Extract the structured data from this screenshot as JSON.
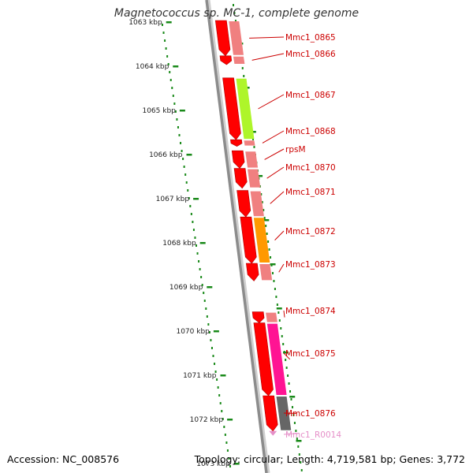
{
  "title": "Magnetococcus sp. MC-1, complete genome",
  "accession": "Accession: NC_008576",
  "summary": "Topology: circular; Length: 4,719,581 bp; Genes: 3,772",
  "colors": {
    "backbone": "#8c8c8c",
    "tick": "#1a8a1a",
    "gene_label": "#cc0000",
    "rna_label": "#e58fc8",
    "cds_forward": "#ff0000",
    "cds_reverse": "#f08080",
    "cog_green": "#aef52a",
    "cog_orange": "#ff9900",
    "cog_pink": "#ff1493",
    "cog_gray": "#666666"
  },
  "scale": {
    "unit": "kbp",
    "labels": [
      "1063 kbp",
      "1064 kbp",
      "1065 kbp",
      "1066 kbp",
      "1067 kbp",
      "1068 kbp",
      "1069 kbp",
      "1070 kbp",
      "1071 kbp",
      "1072 kbp",
      "1073 kbp"
    ]
  },
  "genes": [
    {
      "name": "Mmc1_0865",
      "start": 1063.0,
      "end": 1063.8,
      "strand": "forward",
      "function": "cds_forward"
    },
    {
      "name": "Mmc1_0866",
      "start": 1063.8,
      "end": 1064.0,
      "strand": "forward",
      "function": "cds_forward"
    },
    {
      "name": "Mmc1_0867",
      "start": 1064.3,
      "end": 1065.7,
      "strand": "forward",
      "function": "cog_green"
    },
    {
      "name": "Mmc1_0868",
      "start": 1065.7,
      "end": 1065.85,
      "strand": "forward",
      "function": "cds_forward"
    },
    {
      "name": "rpsM",
      "start": 1065.95,
      "end": 1066.35,
      "strand": "forward",
      "function": "cds_forward"
    },
    {
      "name": "Mmc1_0870",
      "start": 1066.35,
      "end": 1066.8,
      "strand": "forward",
      "function": "cds_forward"
    },
    {
      "name": "Mmc1_0871",
      "start": 1066.85,
      "end": 1067.45,
      "strand": "forward",
      "function": "cds_forward"
    },
    {
      "name": "Mmc1_0872",
      "start": 1067.45,
      "end": 1068.5,
      "strand": "forward",
      "function": "cog_orange"
    },
    {
      "name": "Mmc1_0873",
      "start": 1068.5,
      "end": 1068.9,
      "strand": "forward",
      "function": "cds_forward"
    },
    {
      "name": "Mmc1_0874",
      "start": 1069.6,
      "end": 1069.85,
      "strand": "forward",
      "function": "cds_forward"
    },
    {
      "name": "Mmc1_0875",
      "start": 1069.85,
      "end": 1071.5,
      "strand": "forward",
      "function": "cog_pink"
    },
    {
      "name": "Mmc1_0876",
      "start": 1071.5,
      "end": 1072.3,
      "strand": "forward",
      "function": "cog_gray"
    },
    {
      "name": "Mmc1_R0014",
      "start": 1072.3,
      "end": 1072.4,
      "strand": "forward",
      "function": "rna"
    }
  ]
}
